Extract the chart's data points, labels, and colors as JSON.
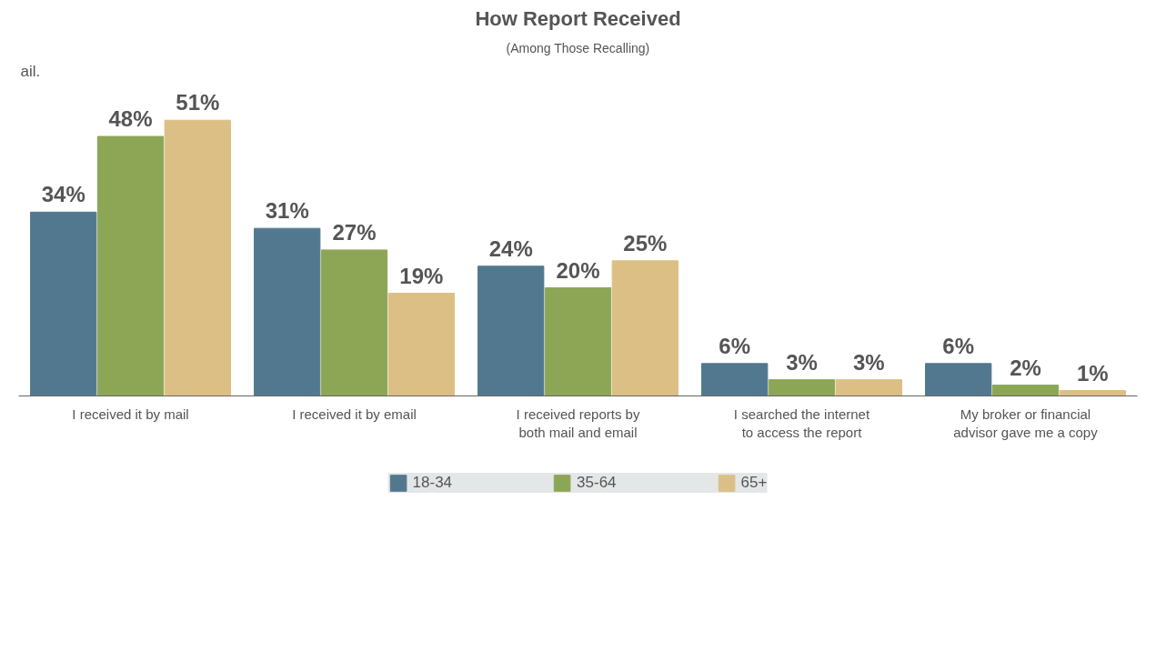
{
  "chart_data": {
    "type": "bar",
    "title": "How Report Received",
    "subtitle": "(Among Those Recalling)",
    "annotations": [
      "ail."
    ],
    "categories": [
      "I received it by mail",
      "I received it by email",
      "I received reports by both mail and email",
      "I searched the internet to access the report",
      "My broker or financial advisor gave me a copy"
    ],
    "series": [
      {
        "name": "18-34",
        "color": "#52788f",
        "values": [
          34,
          31,
          24,
          6,
          6
        ],
        "value_labels": [
          "34%",
          "31%",
          "24%",
          "6%",
          "6%"
        ]
      },
      {
        "name": "35-64",
        "color": "#8da655",
        "values": [
          48,
          27,
          20,
          3,
          2
        ],
        "value_labels": [
          "48%",
          "27%",
          "20%",
          "3%",
          "2%"
        ]
      },
      {
        "name": "65+",
        "color": "#dcbf84",
        "values": [
          51,
          19,
          25,
          3,
          1
        ],
        "value_labels": [
          "51%",
          "19%",
          "25%",
          "3%",
          "1%"
        ]
      }
    ],
    "legend": "bottom",
    "grid": false
  }
}
